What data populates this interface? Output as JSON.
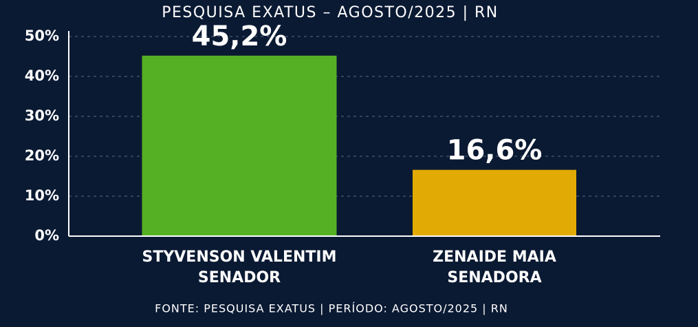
{
  "chart_data": {
    "type": "bar",
    "title": "PESQUISA EXATUS – AGOSTO/2025 | RN",
    "categories": [
      "STYVENSON VALENTIM",
      "ZENAIDE MAIA"
    ],
    "category_subtitles": [
      "SENADOR",
      "SENADORA"
    ],
    "values": [
      45.2,
      16.6
    ],
    "value_labels": [
      "45,2%",
      "16,6%"
    ],
    "colors": [
      "#55b024",
      "#e2aa04"
    ],
    "ylim": [
      0,
      50
    ],
    "yticks": [
      {
        "value": 0,
        "label": "0%"
      },
      {
        "value": 10,
        "label": "10%"
      },
      {
        "value": 20,
        "label": "20%"
      },
      {
        "value": 30,
        "label": "30%"
      },
      {
        "value": 40,
        "label": "40%"
      },
      {
        "value": 50,
        "label": "50%"
      }
    ],
    "grid": true,
    "source": "FONTE: PESQUISA EXATUS | PERÍODO: AGOSTO/2025 | RN"
  }
}
